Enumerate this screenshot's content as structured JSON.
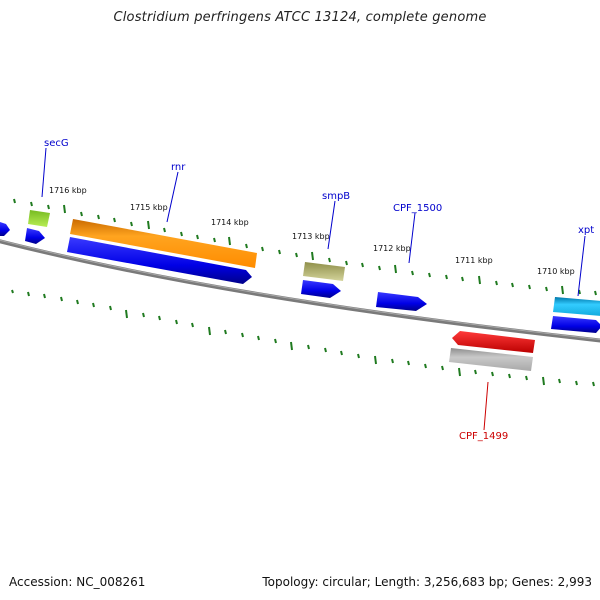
{
  "title": "Clostridium perfringens ATCC 13124, complete genome",
  "footer": {
    "accession": "Accession: NC_008261",
    "summary": "Topology: circular; Length: 3,256,683 bp; Genes: 2,993"
  },
  "colors": {
    "backbone": "#777777",
    "tick": "#1f7a1f",
    "blue_gene": "#0000ee",
    "orange_gene": "#ff9900",
    "green_gene": "#99dd33",
    "olive_gene": "#bbbb77",
    "cyan_gene": "#22bbee",
    "red_gene": "#ee0000",
    "gray_gene": "#b5b5b5",
    "label_blue": "#0000cc",
    "label_red": "#cc0000"
  },
  "kbp_labels": [
    "1716 kbp",
    "1715 kbp",
    "1714 kbp",
    "1713 kbp",
    "1712 kbp",
    "1711 kbp",
    "1710 kbp"
  ],
  "gene_labels": [
    "secG",
    "rnr",
    "smpB",
    "CPF_1500",
    "xpt",
    "CPF_1499"
  ]
}
